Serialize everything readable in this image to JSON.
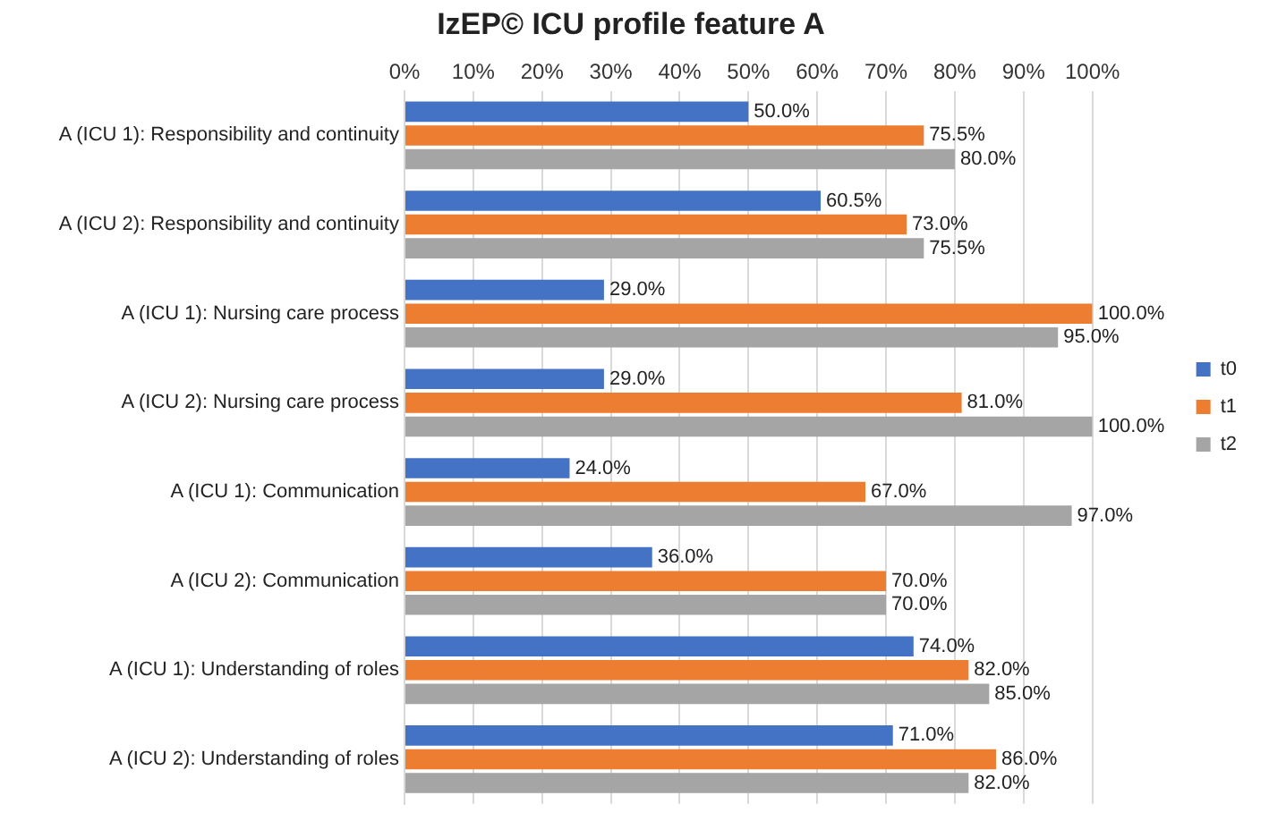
{
  "chart_data": {
    "type": "bar",
    "orientation": "horizontal",
    "title": "IzEP© ICU profile feature A",
    "categories": [
      "A (ICU 1): Responsibility and continuity",
      "A (ICU 2): Responsibility and continuity",
      "A (ICU 1): Nursing care process",
      "A (ICU 2): Nursing care process",
      "A (ICU 1): Communication",
      "A (ICU 2): Communication",
      "A (ICU 1): Understanding of roles",
      "A (ICU 2): Understanding of roles"
    ],
    "series": [
      {
        "name": "t0",
        "color": "#4472c4",
        "values": [
          50,
          60.5,
          29,
          29,
          24,
          36,
          74,
          71
        ],
        "value_labels": [
          "50.0%",
          "60.5%",
          "29.0%",
          "29.0%",
          "24.0%",
          "36.0%",
          "74.0%",
          "71.0%"
        ]
      },
      {
        "name": "t1",
        "color": "#ed7d31",
        "values": [
          75.5,
          73,
          100,
          81,
          67,
          70,
          82,
          86
        ],
        "value_labels": [
          "75.5%",
          "73.0%",
          "100.0%",
          "81.0%",
          "67.0%",
          "70.0%",
          "82.0%",
          "86.0%"
        ]
      },
      {
        "name": "t2",
        "color": "#a5a5a5",
        "values": [
          80,
          75.5,
          95,
          100,
          97,
          70,
          85,
          82
        ],
        "value_labels": [
          "80.0%",
          "75.5%",
          "95.0%",
          "100.0%",
          "97.0%",
          "70.0%",
          "85.0%",
          "82.0%"
        ]
      }
    ],
    "xlim": [
      0,
      100
    ],
    "xticks": [
      {
        "value": 0,
        "label": "0%"
      },
      {
        "value": 10,
        "label": "10%"
      },
      {
        "value": 20,
        "label": "20%"
      },
      {
        "value": 30,
        "label": "30%"
      },
      {
        "value": 40,
        "label": "40%"
      },
      {
        "value": 50,
        "label": "50%"
      },
      {
        "value": 60,
        "label": "60%"
      },
      {
        "value": 70,
        "label": "70%"
      },
      {
        "value": 80,
        "label": "80%"
      },
      {
        "value": 90,
        "label": "90%"
      },
      {
        "value": 100,
        "label": "100%"
      }
    ],
    "grid": "x",
    "legend": "right"
  }
}
